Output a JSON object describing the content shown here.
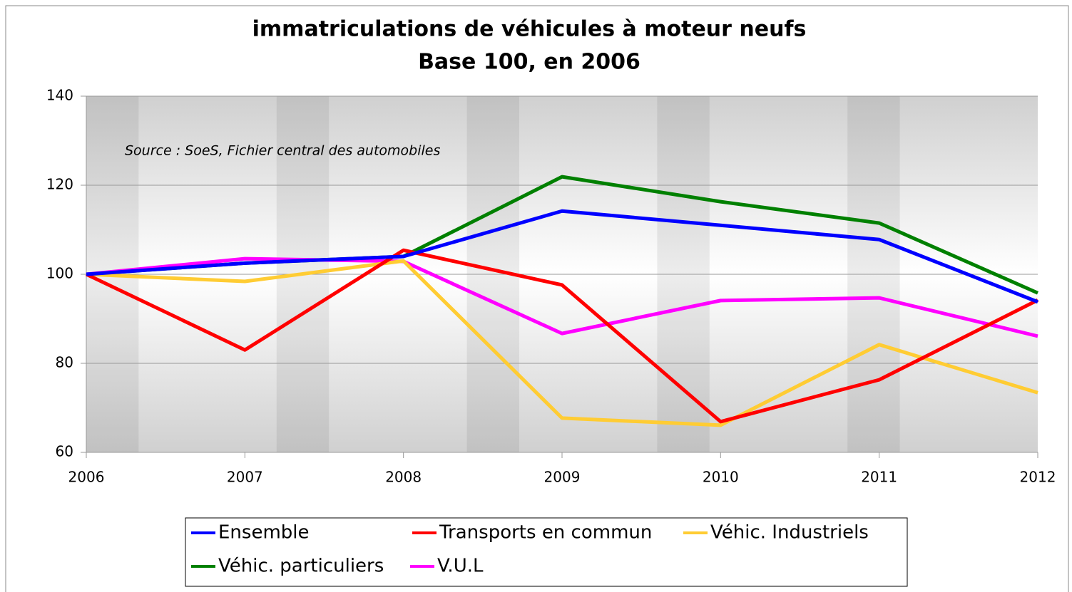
{
  "chart_data": {
    "type": "line",
    "title": "immatriculations de véhicules à moteur neufs",
    "subtitle": "Base 100, en 2006",
    "annotation": "Source : SoeS, Fichier central des automobiles",
    "x": [
      2006,
      2007,
      2008,
      2009,
      2010,
      2011,
      2012
    ],
    "xlim": [
      2006,
      2012
    ],
    "xticks": [
      2006,
      2007,
      2008,
      2009,
      2010,
      2011,
      2012
    ],
    "ylim": [
      60,
      140
    ],
    "yticks": [
      60,
      80,
      100,
      120,
      140
    ],
    "grid": true,
    "series": [
      {
        "name": "Ensemble",
        "color": "#0000ff",
        "values": [
          100,
          102.5,
          104,
          114.2,
          111,
          107.8,
          93.8
        ]
      },
      {
        "name": "Transports en commun",
        "color": "#ff0000",
        "values": [
          100,
          83,
          105.4,
          97.6,
          66.9,
          76.3,
          94.2
        ]
      },
      {
        "name": "Véhic. Industriels",
        "color": "#ffcc33",
        "values": [
          100,
          98.4,
          103,
          67.7,
          66.1,
          84.2,
          73.4
        ]
      },
      {
        "name": "Véhic. particuliers",
        "color": "#008000",
        "values": [
          100,
          102.5,
          104,
          121.9,
          116.3,
          111.5,
          95.8
        ]
      },
      {
        "name": "V.U.L",
        "color": "#ff00ff",
        "values": [
          100,
          103.5,
          102.9,
          86.7,
          94.1,
          94.7,
          86.1
        ]
      }
    ]
  }
}
